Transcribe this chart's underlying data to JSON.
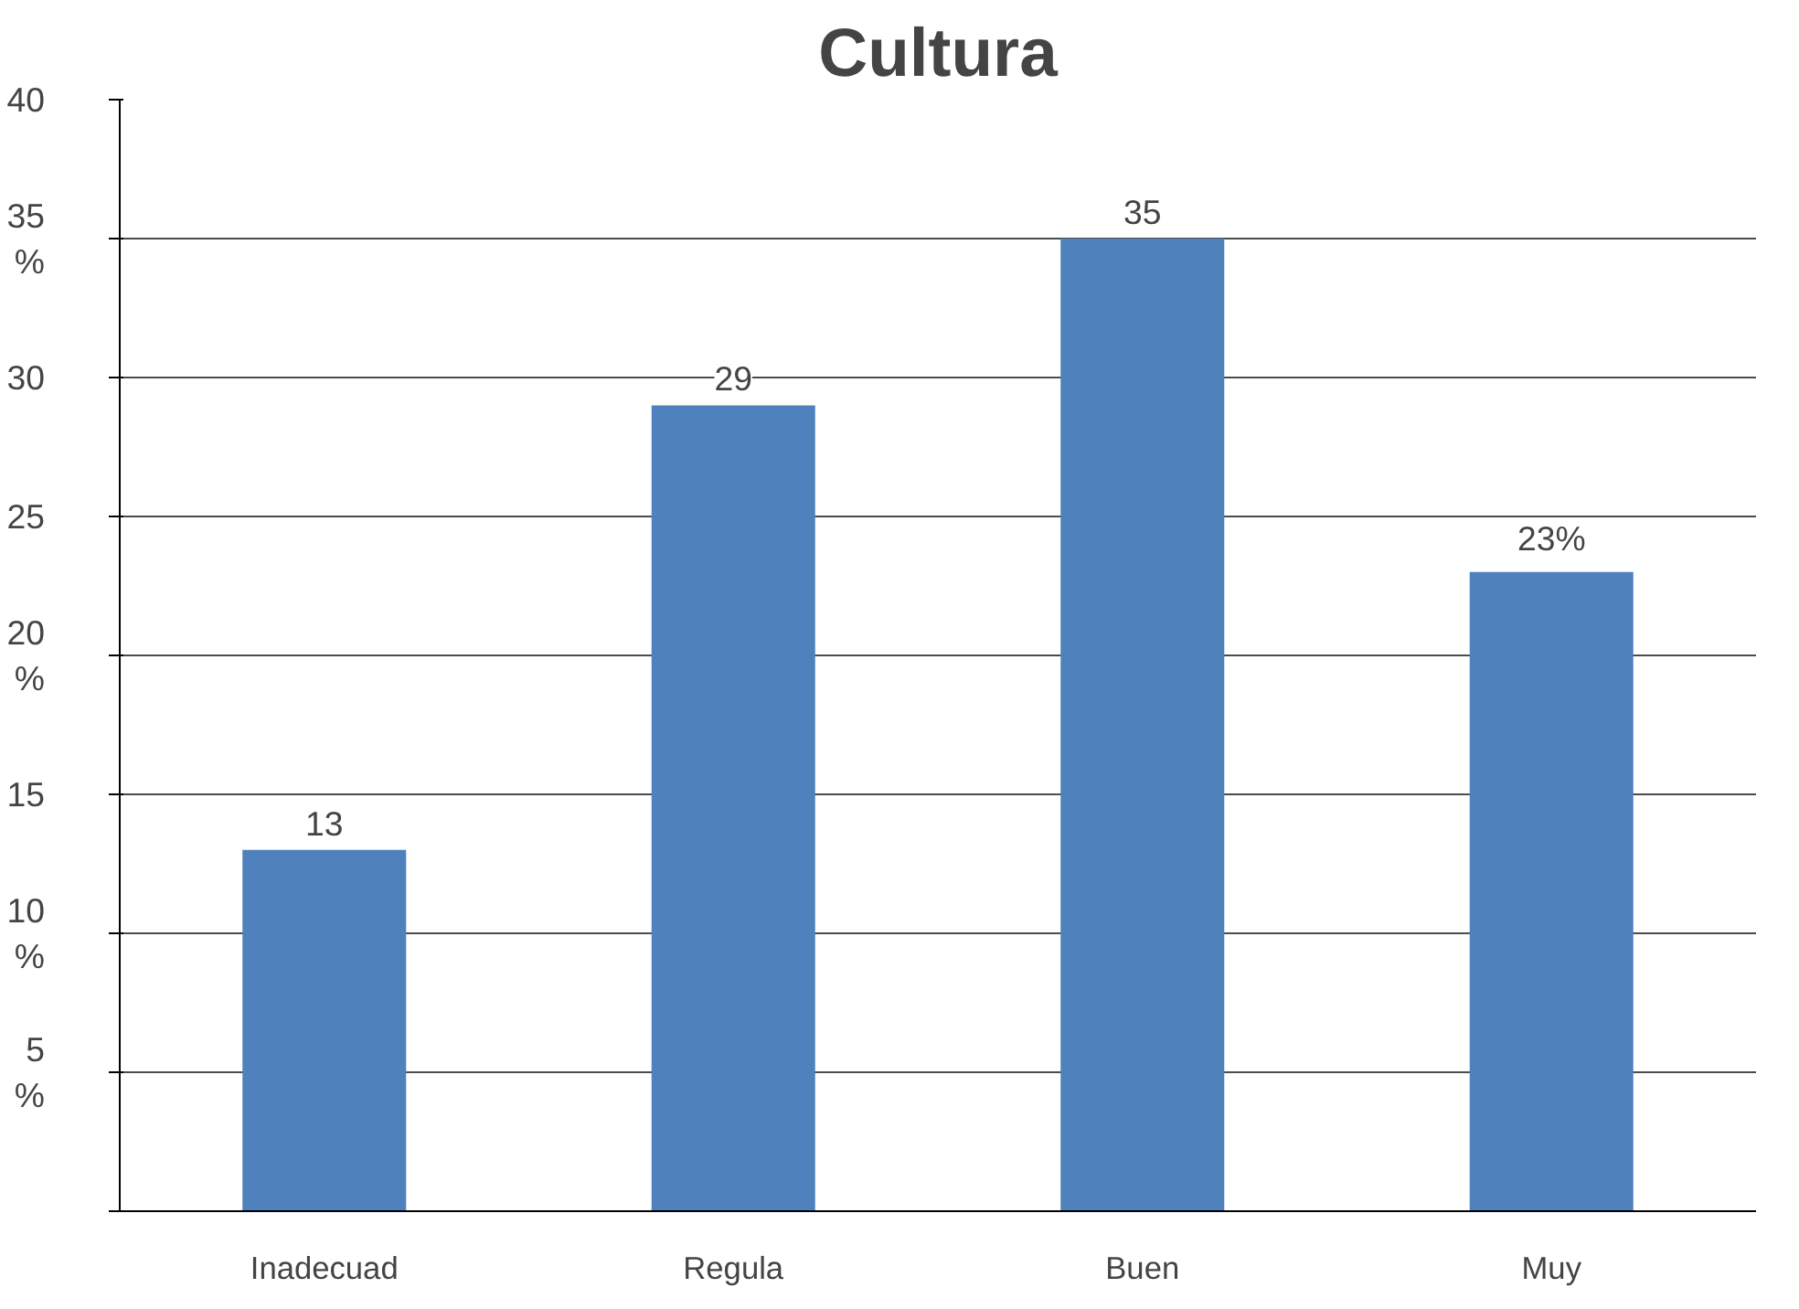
{
  "chart_data": {
    "type": "bar",
    "title": "Cultura",
    "categories": [
      "Inadecuad",
      "Regula",
      "Buen",
      "Muy"
    ],
    "values": [
      13,
      29,
      35,
      23
    ],
    "color": "#4f81bd",
    "value_labels": [
      "13",
      "29",
      "35",
      "23%"
    ],
    "ylim": [
      0,
      40
    ],
    "yticks": [
      {
        "value": 0,
        "label": null
      },
      {
        "value": 5,
        "label": "5\n%"
      },
      {
        "value": 10,
        "label": "10\n%"
      },
      {
        "value": 15,
        "label": "15"
      },
      {
        "value": 20,
        "label": "20\n%"
      },
      {
        "value": 25,
        "label": "25"
      },
      {
        "value": 30,
        "label": "30"
      },
      {
        "value": 35,
        "label": "35\n%"
      },
      40
    ],
    "grid": "y"
  }
}
